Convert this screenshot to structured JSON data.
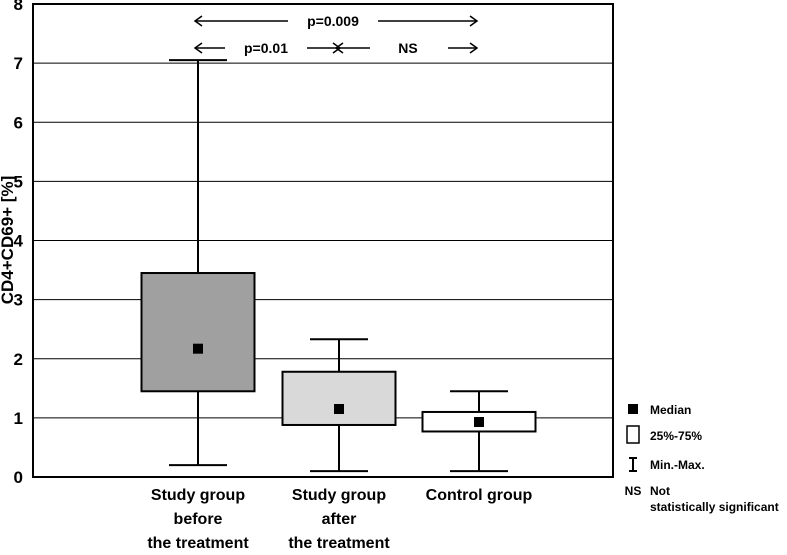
{
  "chart_data": {
    "type": "boxplot",
    "ylabel": "CD4+CD69+ [%]",
    "ylim": [
      0,
      8
    ],
    "yticks": [
      "0",
      "1",
      "2",
      "3",
      "4",
      "5",
      "6",
      "7",
      "8"
    ],
    "grid": true,
    "categories": [
      [
        "Study group",
        "before",
        "the treatment"
      ],
      [
        "Study group",
        "after",
        "the treatment"
      ],
      [
        "Control group"
      ]
    ],
    "boxes": [
      {
        "min": 0.2,
        "q1": 1.45,
        "median": 2.17,
        "q3": 3.45,
        "max": 7.05,
        "fill": "#a0a0a0"
      },
      {
        "min": 0.1,
        "q1": 0.88,
        "median": 1.15,
        "q3": 1.78,
        "max": 2.33,
        "fill": "#d9d9d9"
      },
      {
        "min": 0.1,
        "q1": 0.77,
        "median": 0.93,
        "q3": 1.1,
        "max": 1.45,
        "fill": "#ffffff"
      }
    ],
    "comparisons": [
      {
        "from": 0,
        "to": 2,
        "label": "p=0.009"
      },
      {
        "from": 0,
        "to": 1,
        "label": "p=0.01"
      },
      {
        "from": 1,
        "to": 2,
        "label": "NS"
      }
    ],
    "legend": {
      "position": "right",
      "items": [
        {
          "symbol": "median",
          "label": "Median"
        },
        {
          "symbol": "box",
          "label": "25%-75%"
        },
        {
          "symbol": "whisker",
          "label": "Min.-Max."
        },
        {
          "symbol": "text",
          "abbr": "NS",
          "label": [
            "Not",
            "statistically significant"
          ]
        }
      ]
    }
  }
}
